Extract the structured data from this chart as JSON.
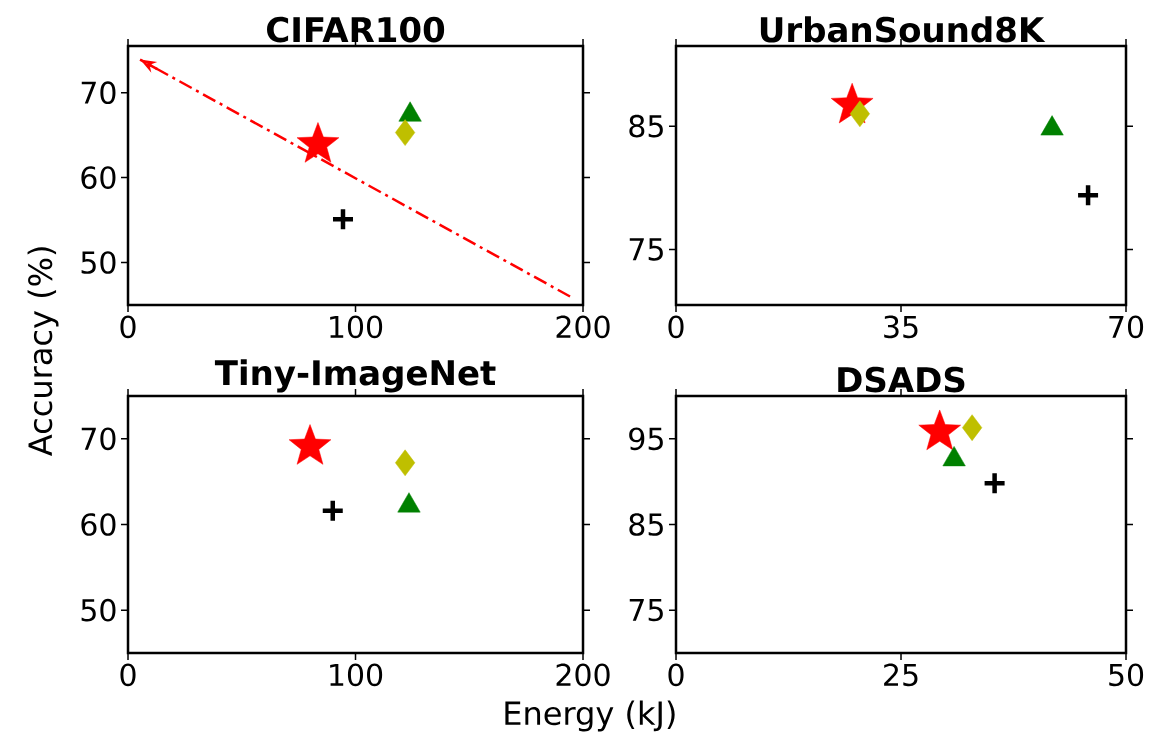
{
  "chart_data": [
    {
      "type": "scatter",
      "title": "CIFAR100",
      "ylabel": "Accuracy (%)",
      "xlim": [
        0,
        200
      ],
      "ylim": [
        45,
        75.5
      ],
      "xticks": [
        0,
        100,
        200
      ],
      "yticks": [
        50,
        60,
        70
      ],
      "series": [
        {
          "color": "#ff0000",
          "marker": "star",
          "x": [
            83.5
          ],
          "values": [
            63.9
          ]
        },
        {
          "color": "#008000",
          "marker": "triangle",
          "x": [
            124
          ],
          "values": [
            67.4
          ]
        },
        {
          "color": "#bfbf00",
          "marker": "diamond",
          "x": [
            121.8
          ],
          "values": [
            65.3
          ]
        },
        {
          "color": "#000000",
          "marker": "cross",
          "x": [
            94.5
          ],
          "values": [
            55.1
          ]
        },
        {
          "type": "line",
          "color": "#ff0000",
          "marker": "none",
          "line_style": "dashed",
          "x": [
            194.3,
            5.3
          ],
          "values": [
            46.0,
            73.9
          ]
        }
      ]
    },
    {
      "type": "scatter",
      "title": "UrbanSound8K",
      "xlim": [
        0,
        70
      ],
      "ylim": [
        70.5,
        91.5
      ],
      "xticks": [
        0,
        35,
        70
      ],
      "yticks": [
        75,
        85
      ],
      "series": [
        {
          "color": "#ff0000",
          "marker": "star",
          "x": [
            27.4
          ],
          "values": [
            86.7
          ]
        },
        {
          "color": "#bfbf00",
          "marker": "diamond",
          "x": [
            28.6
          ],
          "values": [
            86.0
          ]
        },
        {
          "color": "#008000",
          "marker": "triangle",
          "x": [
            58.5
          ],
          "values": [
            84.8
          ]
        },
        {
          "color": "#000000",
          "marker": "cross",
          "x": [
            64.1
          ],
          "values": [
            79.4
          ]
        }
      ]
    },
    {
      "type": "scatter",
      "title": "Tiny-ImageNet",
      "xlabel": "Energy (kJ)",
      "xlim": [
        0,
        200
      ],
      "ylim": [
        45,
        75
      ],
      "xticks": [
        0,
        100,
        200
      ],
      "yticks": [
        50,
        60,
        70
      ],
      "series": [
        {
          "color": "#ff0000",
          "marker": "star",
          "x": [
            80
          ],
          "values": [
            69.1
          ]
        },
        {
          "color": "#bfbf00",
          "marker": "diamond",
          "x": [
            121.8
          ],
          "values": [
            67.2
          ]
        },
        {
          "color": "#008000",
          "marker": "triangle",
          "x": [
            123.5
          ],
          "values": [
            62.2
          ]
        },
        {
          "color": "#000000",
          "marker": "cross",
          "x": [
            90
          ],
          "values": [
            61.6
          ]
        }
      ]
    },
    {
      "type": "scatter",
      "title": "DSADS",
      "xlim": [
        0,
        50
      ],
      "ylim": [
        70,
        100
      ],
      "xticks": [
        0,
        25,
        50
      ],
      "yticks": [
        75,
        85,
        95
      ],
      "series": [
        {
          "color": "#ff0000",
          "marker": "star",
          "x": [
            29.3
          ],
          "values": [
            95.8
          ]
        },
        {
          "color": "#bfbf00",
          "marker": "diamond",
          "x": [
            32.9
          ],
          "values": [
            96.3
          ]
        },
        {
          "color": "#008000",
          "marker": "triangle",
          "x": [
            30.9
          ],
          "values": [
            92.6
          ]
        },
        {
          "color": "#000000",
          "marker": "cross",
          "x": [
            35.4
          ],
          "values": [
            89.8
          ]
        }
      ]
    }
  ]
}
